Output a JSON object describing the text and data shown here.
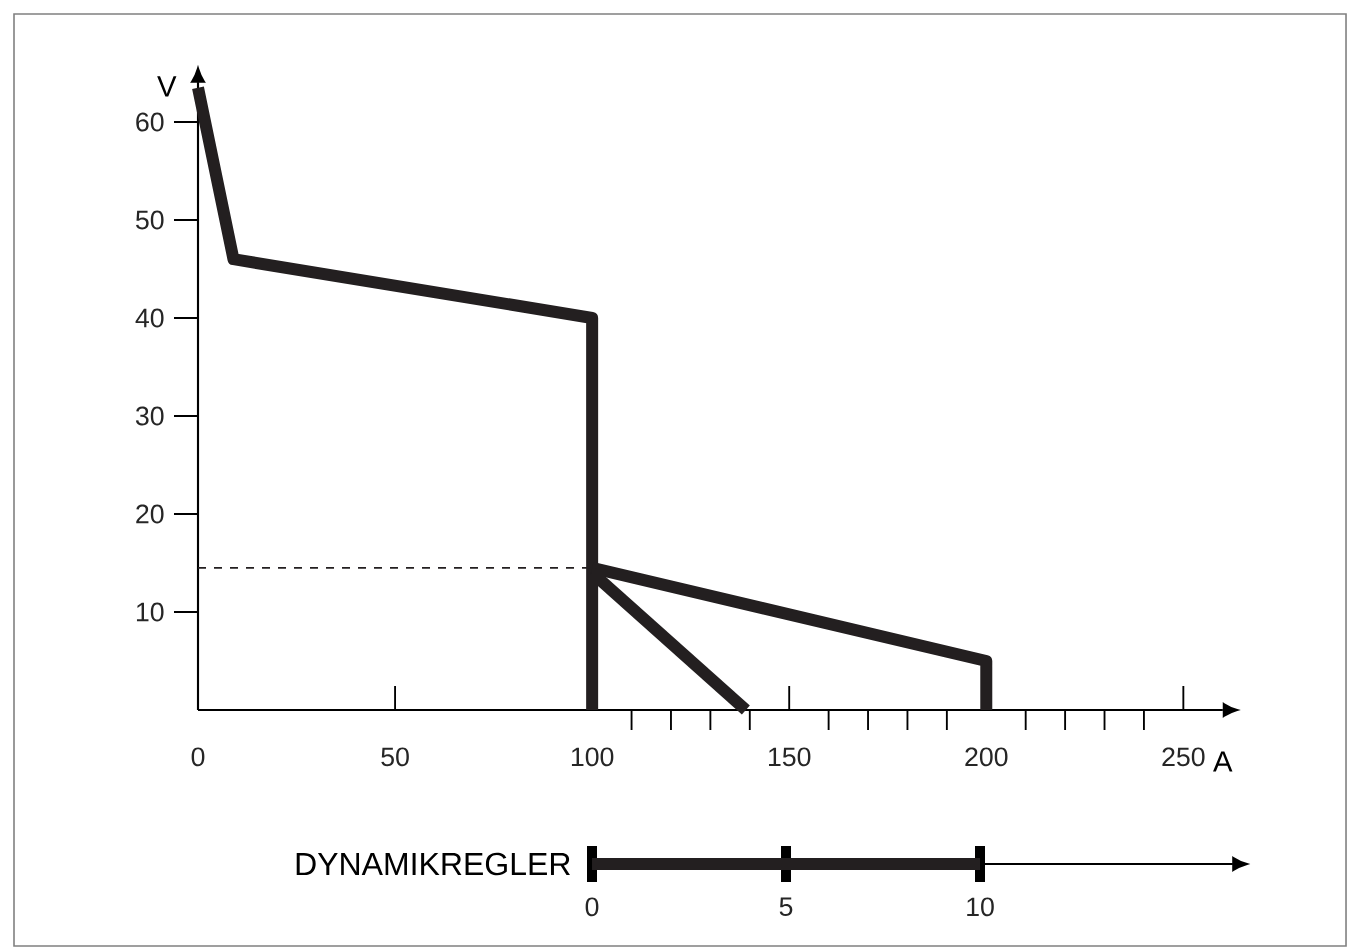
{
  "chart_data": [
    {
      "type": "line",
      "xlabel": "A",
      "ylabel": "V",
      "xlim": [
        0,
        260
      ],
      "ylim": [
        0,
        64
      ],
      "xticks": [
        0,
        50,
        100,
        150,
        200,
        250,
        {
          "value": 110,
          "label": null
        },
        {
          "value": 120,
          "label": null
        },
        {
          "value": 130,
          "label": null
        },
        {
          "value": 140,
          "label": null
        },
        {
          "value": 160,
          "label": null
        },
        {
          "value": 170,
          "label": null
        },
        {
          "value": 180,
          "label": null
        },
        {
          "value": 190,
          "label": null
        },
        {
          "value": 210,
          "label": null
        },
        {
          "value": 220,
          "label": null
        },
        {
          "value": 230,
          "label": null
        },
        {
          "value": 240,
          "label": null
        }
      ],
      "yticks": [
        10,
        20,
        30,
        40,
        50,
        60
      ],
      "series": [
        {
          "color": "#231f20",
          "x": [
            0,
            9,
            100,
            100
          ],
          "values": [
            63.5,
            46,
            40,
            0
          ]
        },
        {
          "color": "#231f20",
          "x": [
            100,
            200,
            200
          ],
          "values": [
            14.5,
            5,
            0
          ]
        },
        {
          "color": "#231f20",
          "x": [
            100,
            139
          ],
          "values": [
            14,
            0
          ]
        }
      ],
      "ref_lines": [
        {
          "axis": "y",
          "value": 14.5,
          "line_style": "dashed",
          "color": "#231f20"
        }
      ]
    },
    {
      "type": "bar",
      "orientation": "horizontal",
      "title": "DYNAMIKREGLER",
      "xlim": [
        0,
        16.5
      ],
      "xticks": [
        0,
        5,
        10
      ],
      "categories": [
        null
      ],
      "values": [
        10
      ],
      "color": "#231f20"
    }
  ]
}
